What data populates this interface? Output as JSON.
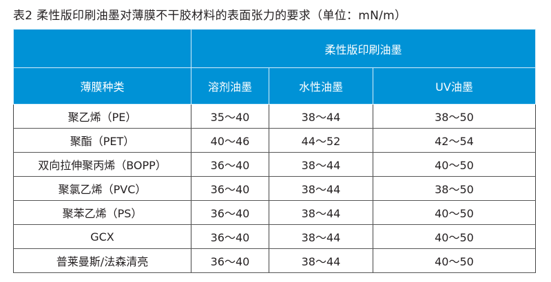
{
  "title": "表2 柔性版印刷油墨对薄膜不干胶材料的表面张力的要求（单位：mN/m）",
  "header": {
    "group": "柔性版印刷油墨",
    "film_type": "薄膜种类",
    "columns": [
      "溶剂油墨",
      "水性油墨",
      "UV油墨"
    ]
  },
  "rows": [
    {
      "film": "聚乙烯（PE）",
      "values": [
        "35～40",
        "38～44",
        "38～50"
      ]
    },
    {
      "film": "聚酯（PET）",
      "values": [
        "40～46",
        "44～52",
        "42～54"
      ]
    },
    {
      "film": "双向拉伸聚丙烯（BOPP）",
      "values": [
        "36～40",
        "38～44",
        "40～50"
      ]
    },
    {
      "film": "聚氯乙烯（PVC）",
      "values": [
        "36～40",
        "38～44",
        "38～50"
      ]
    },
    {
      "film": "聚苯乙烯（PS）",
      "values": [
        "36～40",
        "38～44",
        "40～50"
      ]
    },
    {
      "film": "GCX",
      "values": [
        "36～40",
        "38～44",
        "40～50"
      ]
    },
    {
      "film": "普莱曼斯/法森清亮",
      "values": [
        "36～40",
        "38～44",
        "40～50"
      ]
    }
  ],
  "colors": {
    "header_bg": "#0092d6",
    "header_text": "#ffffff"
  }
}
